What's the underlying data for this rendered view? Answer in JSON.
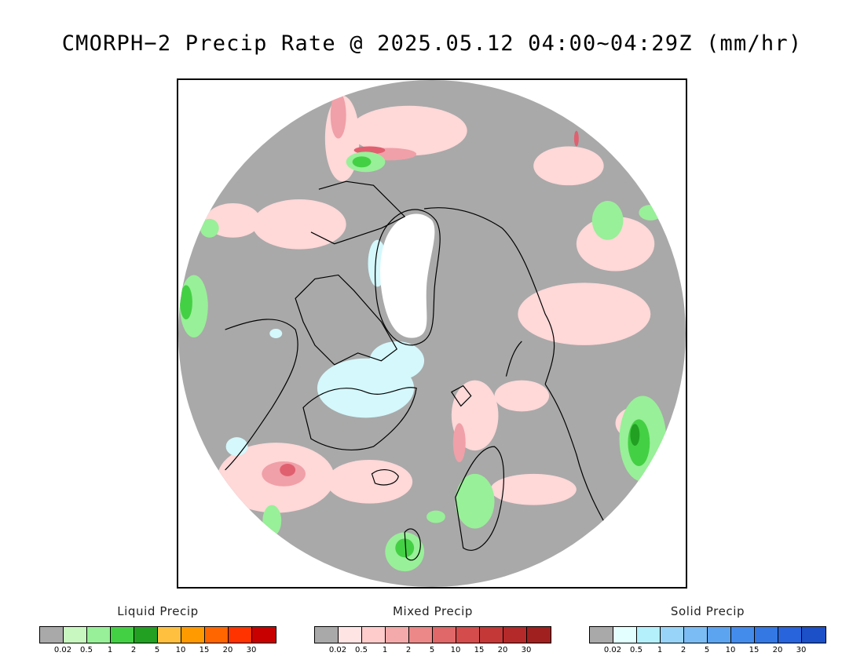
{
  "title": "CMORPH−2 Precip Rate @ 2025.05.12 04:00~04:29Z (mm/hr)",
  "map": {
    "projection": "north-polar-stereographic",
    "background_color": "#a9a9a9",
    "colors": {
      "land_outline": "#000000",
      "greenland_ice": "#ffffff",
      "light_liquid": "#98f098",
      "moderate_liquid": "#44d044",
      "heavy_liquid": "#22a022",
      "light_mixed": "#ffd8d8",
      "moderate_mixed": "#f0a0a8",
      "heavy_mixed": "#e06070",
      "light_solid": "#d4f8fc"
    }
  },
  "legends": [
    {
      "title": "Liquid Precip",
      "colors": [
        "#a9a9a9",
        "#c8f8c0",
        "#98f098",
        "#44d044",
        "#22a022",
        "#ffc040",
        "#ff9a00",
        "#ff6600",
        "#ff3300",
        "#c80000"
      ],
      "ticks": [
        "0.02",
        "0.5",
        "1",
        "2",
        "5",
        "10",
        "15",
        "20",
        "30"
      ]
    },
    {
      "title": "Mixed Precip",
      "colors": [
        "#a9a9a9",
        "#ffe4e4",
        "#ffcccc",
        "#f4aaaa",
        "#ec8888",
        "#e06868",
        "#d44c4c",
        "#c43838",
        "#b42a2a",
        "#a02020"
      ],
      "ticks": [
        "0.02",
        "0.5",
        "1",
        "2",
        "5",
        "10",
        "15",
        "20",
        "30"
      ]
    },
    {
      "title": "Solid Precip",
      "colors": [
        "#a9a9a9",
        "#e4ffff",
        "#b4f0fc",
        "#98d4f8",
        "#7cbcf4",
        "#5ca4f0",
        "#448cec",
        "#3478e4",
        "#2864dc",
        "#1c50c8"
      ],
      "ticks": [
        "0.02",
        "0.5",
        "1",
        "2",
        "5",
        "10",
        "15",
        "20",
        "30"
      ]
    }
  ]
}
